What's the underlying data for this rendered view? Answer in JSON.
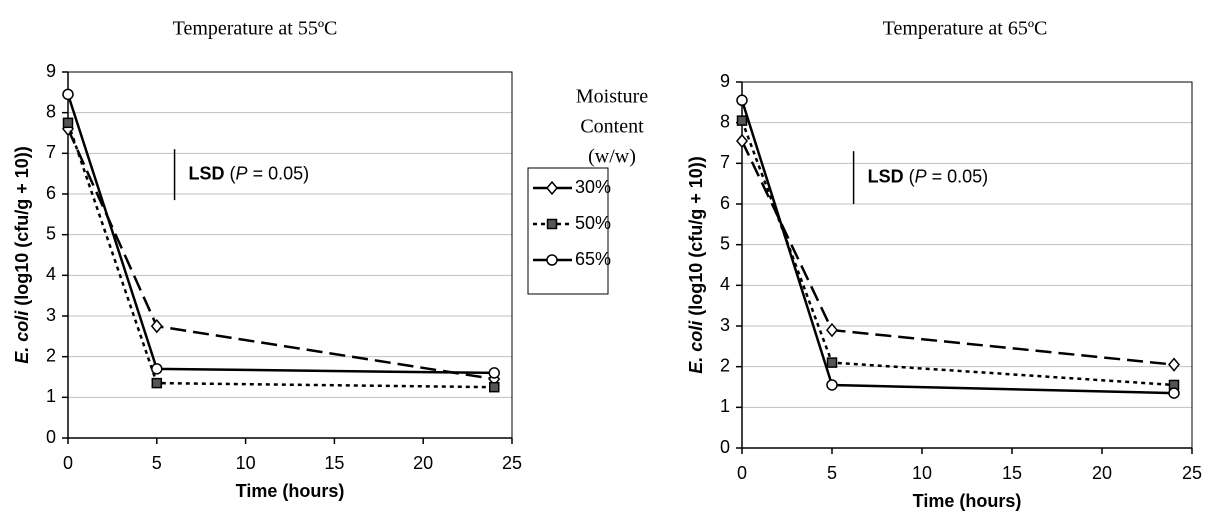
{
  "chart_data": [
    {
      "type": "line",
      "title": "Temperature at 55ºC",
      "xlabel": "Time (hours)",
      "ylabel": [
        "E. coli",
        " (log10 (cfu/g + 10))"
      ],
      "x": [
        0,
        5,
        24
      ],
      "series": [
        {
          "name": "30%",
          "color": "#000000",
          "dash": "16 7",
          "marker": "diamond",
          "values": [
            7.6,
            2.75,
            1.45
          ]
        },
        {
          "name": "50%",
          "color": "#000000",
          "dash": "4 4",
          "marker": "square",
          "values": [
            7.75,
            1.35,
            1.25
          ]
        },
        {
          "name": "65%",
          "color": "#000000",
          "dash": "none",
          "marker": "circle",
          "values": [
            8.45,
            1.7,
            1.6
          ]
        }
      ],
      "legend_title": [
        "Moisture",
        "Content",
        "(w/w)"
      ],
      "lsd": {
        "x": 6,
        "top": 7.1,
        "bottom": 5.85,
        "text": [
          "LSD",
          " (",
          "P",
          " = 0.05)"
        ]
      },
      "xlim": [
        0,
        25
      ],
      "xticks": [
        0,
        5,
        10,
        15,
        20,
        25
      ],
      "ylim": [
        0,
        9
      ],
      "yticks": [
        0,
        1,
        2,
        3,
        4,
        5,
        6,
        7,
        8,
        9
      ],
      "grid": true
    },
    {
      "type": "line",
      "title": "Temperature at 65ºC",
      "xlabel": "Time (hours)",
      "ylabel": [
        "E. coli",
        " (log10 (cfu/g + 10))"
      ],
      "x": [
        0,
        5,
        24
      ],
      "series": [
        {
          "color": "#000000",
          "dash": "16 7",
          "marker": "diamond",
          "values": [
            7.55,
            2.9,
            2.05
          ]
        },
        {
          "color": "#000000",
          "dash": "4 4",
          "marker": "square",
          "values": [
            8.05,
            2.1,
            1.55
          ]
        },
        {
          "color": "#000000",
          "dash": "none",
          "marker": "circle",
          "values": [
            8.55,
            1.55,
            1.35
          ]
        }
      ],
      "lsd": {
        "x": 6.2,
        "top": 7.3,
        "bottom": 6.0,
        "text": [
          "LSD",
          " (",
          "P",
          " = 0.05)"
        ]
      },
      "xlim": [
        0,
        25
      ],
      "xticks": [
        0,
        5,
        10,
        15,
        20,
        25
      ],
      "ylim": [
        0,
        9
      ],
      "yticks": [
        0,
        1,
        2,
        3,
        4,
        5,
        6,
        7,
        8,
        9
      ],
      "grid": true
    }
  ]
}
